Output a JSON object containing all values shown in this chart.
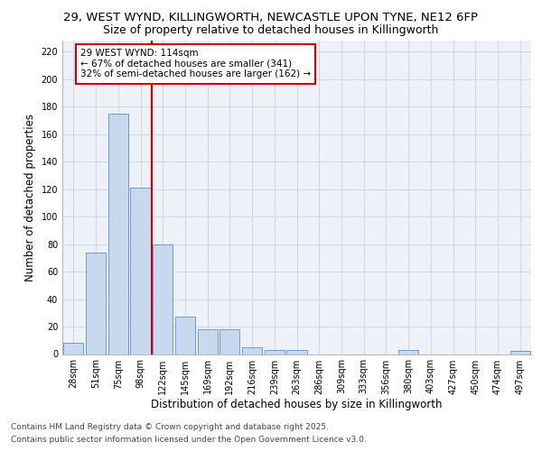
{
  "title_line1": "29, WEST WYND, KILLINGWORTH, NEWCASTLE UPON TYNE, NE12 6FP",
  "title_line2": "Size of property relative to detached houses in Killingworth",
  "xlabel": "Distribution of detached houses by size in Killingworth",
  "ylabel": "Number of detached properties",
  "categories": [
    "28sqm",
    "51sqm",
    "75sqm",
    "98sqm",
    "122sqm",
    "145sqm",
    "169sqm",
    "192sqm",
    "216sqm",
    "239sqm",
    "263sqm",
    "286sqm",
    "309sqm",
    "333sqm",
    "356sqm",
    "380sqm",
    "403sqm",
    "427sqm",
    "450sqm",
    "474sqm",
    "497sqm"
  ],
  "values": [
    8,
    74,
    175,
    121,
    80,
    27,
    18,
    18,
    5,
    3,
    3,
    0,
    0,
    0,
    0,
    3,
    0,
    0,
    0,
    0,
    2
  ],
  "bar_color": "#c8d8ee",
  "bar_edge_color": "#6090c8",
  "grid_color": "#d0d8e8",
  "bg_color": "#eef2f8",
  "vline_x": 3.5,
  "marker_label": "29 WEST WYND: 114sqm",
  "annotation_line1": "← 67% of detached houses are smaller (341)",
  "annotation_line2": "32% of semi-detached houses are larger (162) →",
  "annotation_box_facecolor": "#ffffff",
  "annotation_box_edgecolor": "#cc0000",
  "vline_color": "#cc0000",
  "ylim": [
    0,
    228
  ],
  "yticks": [
    0,
    20,
    40,
    60,
    80,
    100,
    120,
    140,
    160,
    180,
    200,
    220
  ],
  "footnote_line1": "Contains HM Land Registry data © Crown copyright and database right 2025.",
  "footnote_line2": "Contains public sector information licensed under the Open Government Licence v3.0.",
  "title_fontsize": 9.5,
  "subtitle_fontsize": 9,
  "axis_label_fontsize": 8.5,
  "tick_fontsize": 7,
  "annotation_fontsize": 7.5,
  "footnote_fontsize": 6.5
}
